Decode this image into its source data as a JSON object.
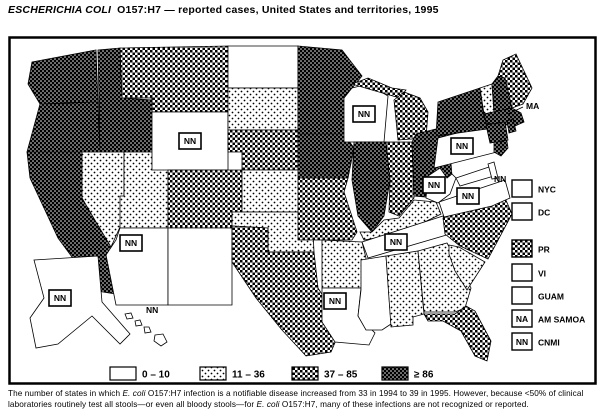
{
  "title": {
    "italic": "ESCHERICHIA COLI",
    "rest": "O157:H7 — reported cases, United States and territories, 1995"
  },
  "legend": [
    {
      "label": "0 – 10",
      "pattern": "none"
    },
    {
      "label": "11 – 36",
      "pattern": "dots"
    },
    {
      "label": "37 – 85",
      "pattern": "medium"
    },
    {
      "label": "≥ 86",
      "pattern": "dark"
    }
  ],
  "abbreviations": {
    "NN": "NN",
    "NA": "NA",
    "MA_callout": "MA"
  },
  "territories": [
    {
      "code": "NYC",
      "pattern": "none",
      "mark": ""
    },
    {
      "code": "DC",
      "pattern": "none",
      "mark": ""
    },
    {
      "code": "PR",
      "pattern": "medium",
      "mark": ""
    },
    {
      "code": "VI",
      "pattern": "none",
      "mark": ""
    },
    {
      "code": "GUAM",
      "pattern": "none",
      "mark": ""
    },
    {
      "code": "AM SAMOA",
      "pattern": "none",
      "mark": "NA"
    },
    {
      "code": "CNMI",
      "pattern": "none",
      "mark": "NN"
    }
  ],
  "chart_data": {
    "type": "choropleth-map",
    "region": "United States and territories",
    "year": "1995",
    "categories": [
      "0 – 10",
      "11 – 36",
      "37 – 85",
      "≥ 86"
    ],
    "states": [
      {
        "id": "WA",
        "pattern": "dark"
      },
      {
        "id": "OR",
        "pattern": "dark"
      },
      {
        "id": "CA",
        "pattern": "dark"
      },
      {
        "id": "ID",
        "pattern": "dark"
      },
      {
        "id": "NV",
        "pattern": "dots"
      },
      {
        "id": "UT",
        "pattern": "dots"
      },
      {
        "id": "MT",
        "pattern": "medium"
      },
      {
        "id": "WY",
        "pattern": "none",
        "nn": true
      },
      {
        "id": "CO",
        "pattern": "medium"
      },
      {
        "id": "AZ",
        "pattern": "none",
        "nn": true
      },
      {
        "id": "NM",
        "pattern": "none"
      },
      {
        "id": "ND",
        "pattern": "none"
      },
      {
        "id": "SD",
        "pattern": "dots"
      },
      {
        "id": "NE",
        "pattern": "medium"
      },
      {
        "id": "KS",
        "pattern": "dots"
      },
      {
        "id": "OK",
        "pattern": "dots"
      },
      {
        "id": "TX",
        "pattern": "medium"
      },
      {
        "id": "MN",
        "pattern": "dark"
      },
      {
        "id": "IA",
        "pattern": "dark"
      },
      {
        "id": "MO",
        "pattern": "medium"
      },
      {
        "id": "WI",
        "pattern": "none",
        "nn": true
      },
      {
        "id": "MI",
        "pattern": "medium"
      },
      {
        "id": "IL",
        "pattern": "dark"
      },
      {
        "id": "IN",
        "pattern": "medium"
      },
      {
        "id": "OH",
        "pattern": "dark"
      },
      {
        "id": "KY",
        "pattern": "dots"
      },
      {
        "id": "TN",
        "pattern": "none",
        "nn": true
      },
      {
        "id": "AR",
        "pattern": "dots"
      },
      {
        "id": "LA",
        "pattern": "none",
        "nn": true
      },
      {
        "id": "MS",
        "pattern": "none"
      },
      {
        "id": "AL",
        "pattern": "dots"
      },
      {
        "id": "GA",
        "pattern": "dots"
      },
      {
        "id": "SC",
        "pattern": "dots"
      },
      {
        "id": "NC",
        "pattern": "medium"
      },
      {
        "id": "FL",
        "pattern": "medium"
      },
      {
        "id": "VA",
        "pattern": "none",
        "nn": true
      },
      {
        "id": "WV",
        "pattern": "none",
        "nn": true
      },
      {
        "id": "MD",
        "pattern": "none"
      },
      {
        "id": "DE",
        "pattern": "none",
        "nn_text": true
      },
      {
        "id": "PA",
        "pattern": "none",
        "nn": true
      },
      {
        "id": "NJ",
        "pattern": "dark"
      },
      {
        "id": "NY",
        "pattern": "dark"
      },
      {
        "id": "VT",
        "pattern": "dots"
      },
      {
        "id": "NH",
        "pattern": "dark"
      },
      {
        "id": "ME",
        "pattern": "medium"
      },
      {
        "id": "MA",
        "pattern": "dark",
        "callout": "MA"
      },
      {
        "id": "CT",
        "pattern": "dark"
      },
      {
        "id": "RI",
        "pattern": "dark"
      },
      {
        "id": "AK",
        "pattern": "none",
        "nn": true
      },
      {
        "id": "HI",
        "pattern": "none",
        "nn_text": true
      }
    ]
  },
  "caption": {
    "part1": "The number of states in which ",
    "italic1": "E. coli",
    "part2": " O157:H7 infection is a notifiable disease increased from 33 in 1994 to 39 in 1995. However, because <50% of clinical laboratories routinely test all stools—or even all bloody stools—for ",
    "italic2": "E. coli",
    "part3": " O157:H7, many of these infections are not recognized or reported."
  }
}
